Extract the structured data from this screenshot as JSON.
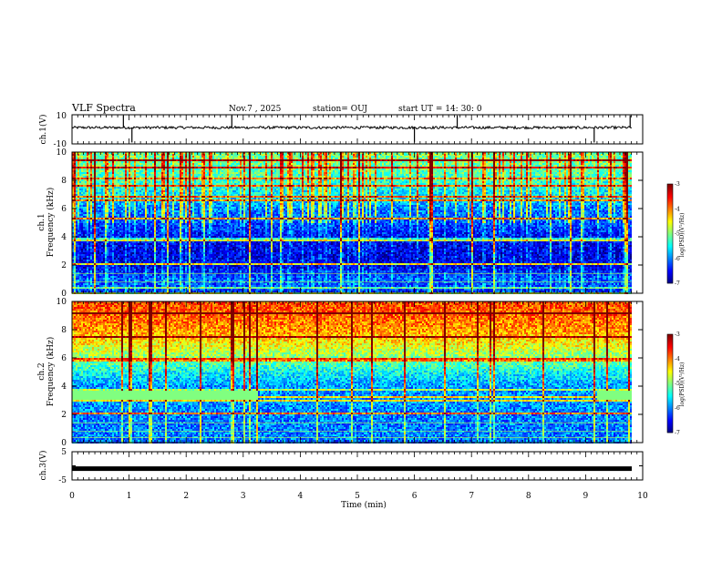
{
  "header": {
    "title": "VLF Spectra",
    "date": "Nov.7 , 2025",
    "station": "station= OUJ",
    "start": "start  UT =   14: 30: 0"
  },
  "chart_data": [
    {
      "type": "line",
      "name": "ch1-waveform",
      "ylabel": "ch.1(V)",
      "ylim": [
        -10,
        10
      ],
      "y_ticks": [
        "10",
        "-10"
      ],
      "xlim": [
        0,
        10
      ],
      "baseline": 1.2,
      "spikes": [
        0.9,
        1.05,
        2.8,
        6.0,
        6.75,
        9.15,
        9.78
      ],
      "color": "#000000"
    },
    {
      "type": "heatmap",
      "name": "ch1-spectrogram",
      "ylabel": "ch.1\nFrequency (kHz)",
      "ylabel_lines": [
        "ch.1",
        "Frequency (kHz)"
      ],
      "ylim": [
        0,
        10
      ],
      "y_ticks": [
        "0",
        "2",
        "4",
        "6",
        "8",
        "10"
      ],
      "xlim": [
        0,
        9.8
      ],
      "colorbar": {
        "range": [
          -7,
          -3
        ],
        "ticks": [
          "-3",
          "-4",
          "-5",
          "-6",
          "-7"
        ],
        "label": "log(PSD)(V²/Hz)"
      },
      "profile_kHz": [
        0,
        1,
        2,
        3,
        4,
        5,
        6,
        7,
        8,
        9,
        10
      ],
      "profile_logPSD": [
        -6.4,
        -6.1,
        -6.6,
        -6.6,
        -6.5,
        -6.2,
        -6.0,
        -5.6,
        -5.3,
        -5.1,
        -5.0
      ]
    },
    {
      "type": "heatmap",
      "name": "ch2-spectrogram",
      "ylabel": "ch.2\nFrequency (kHz)",
      "ylabel_lines": [
        "ch.2",
        "Frequency (kHz)"
      ],
      "ylim": [
        0,
        10
      ],
      "y_ticks": [
        "0",
        "2",
        "4",
        "6",
        "8",
        "10"
      ],
      "xlim": [
        0,
        9.8
      ],
      "colorbar": {
        "range": [
          -7,
          -3
        ],
        "ticks": [
          "-3",
          "-4",
          "-5",
          "-6",
          "-7"
        ],
        "label": "log(PSD)(V²/Hz)"
      },
      "profile_kHz": [
        0,
        1,
        2,
        3,
        4,
        5,
        6,
        7,
        8,
        9,
        10
      ],
      "profile_logPSD": [
        -6.0,
        -6.0,
        -6.0,
        -5.9,
        -5.9,
        -5.5,
        -5.0,
        -4.5,
        -4.1,
        -3.9,
        -3.8
      ],
      "band_kHz": 3.4,
      "band_segments_min": [
        [
          0,
          3.25
        ],
        [
          9.2,
          9.8
        ]
      ]
    },
    {
      "type": "line",
      "name": "ch3-waveform",
      "ylabel": "ch.3(V)",
      "ylim": [
        -5,
        5
      ],
      "y_ticks": [
        "5",
        "0",
        "-5"
      ],
      "xlim": [
        0,
        10
      ],
      "value": -1.0,
      "color": "#000000"
    }
  ],
  "x_axis": {
    "label": "Time  (min)",
    "ticks": [
      "0",
      "1",
      "2",
      "3",
      "4",
      "5",
      "6",
      "7",
      "8",
      "9",
      "10"
    ],
    "range": [
      0,
      10
    ]
  }
}
